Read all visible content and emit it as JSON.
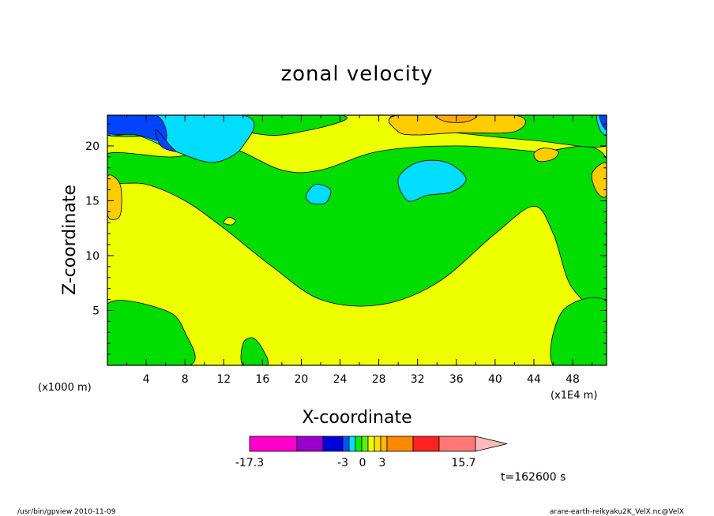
{
  "chart_data": {
    "type": "heatmap",
    "title": "zonal velocity",
    "xlabel": "X-coordinate",
    "ylabel": "Z-coordinate",
    "x_unit": "(x1E4 m)",
    "y_unit": "(x1000 m)",
    "xlim": [
      0,
      51.5
    ],
    "ylim": [
      0,
      22.8
    ],
    "x_ticks": [
      4,
      8,
      12,
      16,
      20,
      24,
      28,
      32,
      36,
      40,
      44,
      48
    ],
    "y_ticks": [
      5,
      10,
      15,
      20
    ],
    "colorbar": {
      "levels": [
        "-17.3",
        "-3",
        "0",
        "3",
        "15.7"
      ],
      "colors": [
        "#ff00cc",
        "#9900cc",
        "#0000dd",
        "#0055ff",
        "#00ddff",
        "#00ee00",
        "#66ee00",
        "#eeff00",
        "#ffdd00",
        "#ffbb00",
        "#ff8800",
        "#ff2222",
        "#ff7777",
        "#ffbbbb"
      ]
    },
    "fields": {
      "background": "#eeff00",
      "regions": [
        {
          "name": "green-band",
          "color": "#00dd00",
          "value_range": "0 to -3",
          "points": [
            [
              7,
              19
            ],
            [
              12,
              20
            ],
            [
              18,
              17.8
            ],
            [
              22,
              17.8
            ],
            [
              28,
              19.5
            ],
            [
              36,
              20
            ],
            [
              44,
              19.5
            ],
            [
              51.5,
              18.8
            ],
            [
              51.5,
              5.8
            ],
            [
              48,
              7
            ],
            [
              46,
              12
            ],
            [
              44,
              14.5
            ],
            [
              40,
              12
            ],
            [
              34,
              7.5
            ],
            [
              28,
              5.5
            ],
            [
              22,
              6
            ],
            [
              17,
              9
            ],
            [
              12,
              12.5
            ],
            [
              8,
              15
            ],
            [
              4,
              16.5
            ],
            [
              0,
              16.8
            ],
            [
              0,
              19.3
            ]
          ]
        },
        {
          "name": "green-top-left",
          "color": "#00dd00",
          "points": [
            [
              0,
              22.8
            ],
            [
              24,
              22.8
            ],
            [
              18,
              21
            ],
            [
              12,
              21.5
            ],
            [
              6,
              21
            ],
            [
              0,
              21
            ]
          ]
        },
        {
          "name": "green-top-right",
          "color": "#00dd00",
          "points": [
            [
              30,
              22.8
            ],
            [
              51.5,
              22.8
            ],
            [
              51.5,
              20
            ],
            [
              44,
              20.5
            ],
            [
              38,
              21
            ],
            [
              34,
              21.5
            ]
          ]
        },
        {
          "name": "green-bottom-left",
          "color": "#00dd00",
          "points": [
            [
              0,
              5.6
            ],
            [
              6,
              5
            ],
            [
              8,
              3
            ],
            [
              8.5,
              0
            ],
            [
              0,
              0
            ]
          ]
        },
        {
          "name": "green-bottom-mid",
          "color": "#00dd00",
          "points": [
            [
              14,
              0
            ],
            [
              14,
              2
            ],
            [
              15,
              2.5
            ],
            [
              16,
              1.5
            ],
            [
              16.5,
              0
            ]
          ]
        },
        {
          "name": "green-bottom-right",
          "color": "#00dd00",
          "points": [
            [
              46,
              0
            ],
            [
              47,
              5
            ],
            [
              51.5,
              5.8
            ],
            [
              51.5,
              0
            ]
          ]
        },
        {
          "name": "cyan-top-left",
          "color": "#00ddff",
          "points": [
            [
              0,
              22.8
            ],
            [
              14,
              22.8
            ],
            [
              14,
              20
            ],
            [
              11,
              18.5
            ],
            [
              7,
              19.5
            ],
            [
              3,
              21
            ],
            [
              0,
              21
            ]
          ]
        },
        {
          "name": "blue-top-left",
          "color": "#0044ff",
          "points": [
            [
              0,
              22.8
            ],
            [
              5,
              22.8
            ],
            [
              6,
              20.5
            ],
            [
              3,
              21
            ],
            [
              0,
              21.2
            ]
          ]
        },
        {
          "name": "blue-top-left-tail",
          "color": "#0044ff",
          "points": [
            [
              5,
              21.5
            ],
            [
              6.5,
              20
            ],
            [
              7,
              19.5
            ],
            [
              5.5,
              20
            ]
          ]
        },
        {
          "name": "cyan-mid-right",
          "color": "#00ddff",
          "points": [
            [
              30,
              17
            ],
            [
              32,
              18.5
            ],
            [
              35,
              18.5
            ],
            [
              37,
              17
            ],
            [
              35.5,
              15.8
            ],
            [
              33,
              15.5
            ],
            [
              31,
              15
            ]
          ]
        },
        {
          "name": "cyan-mid-small",
          "color": "#00ddff",
          "points": [
            [
              20.5,
              15.5
            ],
            [
              21.5,
              16.5
            ],
            [
              23,
              16
            ],
            [
              22.5,
              14.8
            ],
            [
              21,
              14.8
            ]
          ]
        },
        {
          "name": "cyan-top-right-corner",
          "color": "#00ddff",
          "points": [
            [
              50.5,
              22.8
            ],
            [
              51.5,
              22.8
            ],
            [
              51.5,
              21
            ],
            [
              50.8,
              21.5
            ]
          ]
        },
        {
          "name": "blue-top-right-corner",
          "color": "#0044ff",
          "points": [
            [
              50.8,
              22.8
            ],
            [
              51.5,
              22.8
            ],
            [
              51.5,
              21.5
            ],
            [
              51,
              22
            ]
          ]
        },
        {
          "name": "orange-top-right",
          "color": "#ffcc00",
          "points": [
            [
              30,
              22.8
            ],
            [
              42,
              22.8
            ],
            [
              42,
              21.3
            ],
            [
              36,
              21.2
            ],
            [
              32,
              21
            ],
            [
              30,
              21.3
            ]
          ]
        },
        {
          "name": "darkorange-top-right",
          "color": "#ffaa00",
          "points": [
            [
              34,
              22.8
            ],
            [
              38,
              22.8
            ],
            [
              37,
              22.2
            ],
            [
              35,
              22.2
            ]
          ]
        },
        {
          "name": "orange-right-small",
          "color": "#ffcc00",
          "points": [
            [
              44,
              19.3
            ],
            [
              45,
              19.8
            ],
            [
              46.5,
              19.5
            ],
            [
              46,
              18.8
            ],
            [
              44.5,
              18.6
            ]
          ]
        },
        {
          "name": "orange-right-edge",
          "color": "#ffcc00",
          "points": [
            [
              50,
              17.5
            ],
            [
              51.5,
              18.4
            ],
            [
              51.5,
              15.5
            ],
            [
              50.5,
              15.8
            ]
          ]
        },
        {
          "name": "orange-left-edge",
          "color": "#ffcc00",
          "points": [
            [
              0,
              17.2
            ],
            [
              1.3,
              16.5
            ],
            [
              1.4,
              14
            ],
            [
              0.8,
              13.3
            ],
            [
              0,
              13.8
            ]
          ]
        },
        {
          "name": "yellow-small-dot",
          "color": "#eeff00",
          "points": [
            [
              12,
              13
            ],
            [
              12.5,
              13.5
            ],
            [
              13.2,
              13.2
            ],
            [
              12.8,
              12.8
            ]
          ]
        }
      ]
    }
  },
  "footer": {
    "left": "/usr/bin/gpview   2010-11-09",
    "right": "arare-earth-reikyaku2K_VelX.nc@VelX"
  },
  "time_label": "t=162600 s"
}
